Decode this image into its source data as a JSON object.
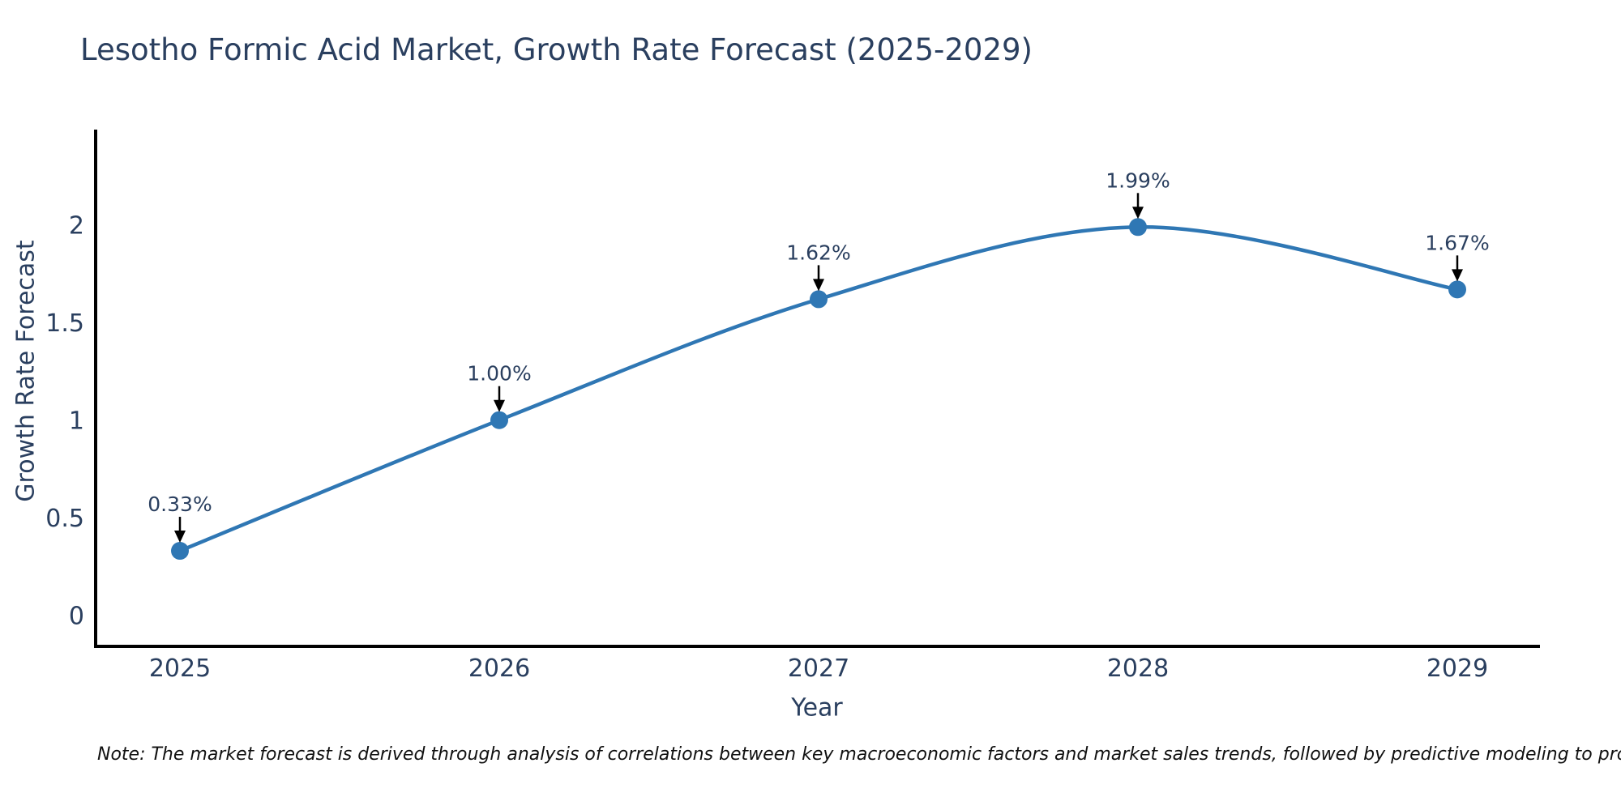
{
  "figure": {
    "title": "Lesotho Formic Acid Market, Growth Rate Forecast (2025-2029)",
    "note": "Note: The market forecast is derived through analysis of correlations between key macroeconomic factors and market sales trends, followed by predictive modeling to project future sales"
  },
  "chart_data": {
    "type": "line",
    "title": "Lesotho Formic Acid Market, Growth Rate Forecast (2025-2029)",
    "xlabel": "Year",
    "ylabel": "Growth Rate Forecast",
    "x": [
      2025,
      2026,
      2027,
      2028,
      2029
    ],
    "x_tick_labels": [
      "2025",
      "2026",
      "2027",
      "2028",
      "2029"
    ],
    "values": [
      0.33,
      1.0,
      1.62,
      1.99,
      1.67
    ],
    "point_labels": [
      "0.33%",
      "1.00%",
      "1.62%",
      "1.99%",
      "1.67%"
    ],
    "yticks": [
      0,
      0.5,
      1,
      1.5,
      2
    ],
    "ytick_labels": [
      "0",
      "0.5",
      "1",
      "1.5",
      "2"
    ],
    "ylim": [
      -0.17,
      2.66
    ],
    "grid": false,
    "legend": false,
    "line_shape": "spline",
    "annotation_style": "value-label-with-down-arrow",
    "colors": {
      "line": "#2f77b4",
      "marker": "#2f77b4",
      "axis": "#000000",
      "tick_text": "#2a3f5f",
      "annotation_text": "#2a3f5f",
      "arrow": "#000000",
      "title_text": "#2a3f5f",
      "note_text": "#111111",
      "background": "#ffffff"
    }
  }
}
